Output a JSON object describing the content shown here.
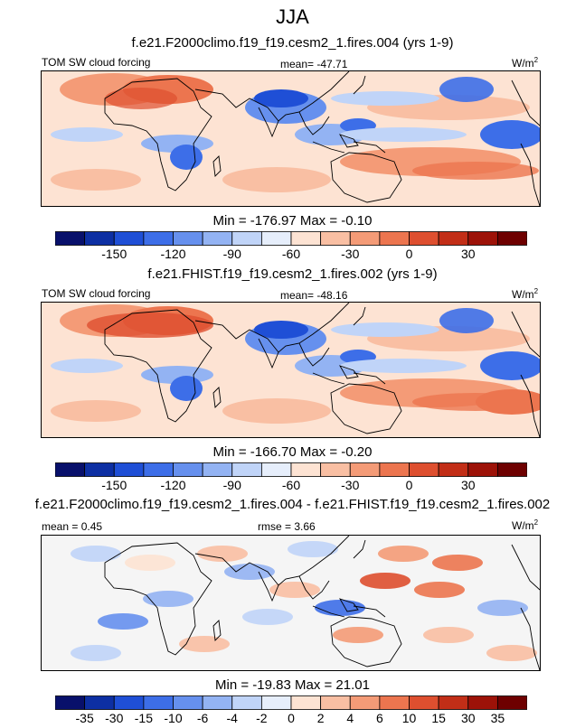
{
  "title": "JJA",
  "panels": [
    {
      "run_title": "f.e21.F2000climo.f19_f19.cesm2_1.fires.004 (yrs 1-9)",
      "left_label": "TOM SW cloud forcing",
      "stat_label": "mean= -47.71",
      "units_base": "W/m",
      "units_exp": "2",
      "minmax": "Min = -176.97 Max =  -0.10",
      "kind": "abs"
    },
    {
      "run_title": "f.e21.FHIST.f19_f19.cesm2_1.fires.002 (yrs 1-9)",
      "left_label": "TOM SW cloud forcing",
      "stat_label": "mean= -48.16",
      "units_base": "W/m",
      "units_exp": "2",
      "minmax": "Min = -166.70 Max =  -0.20",
      "kind": "abs"
    },
    {
      "run_title": "f.e21.F2000climo.f19_f19.cesm2_1.fires.004 - f.e21.FHIST.f19_f19.cesm2_1.fires.002",
      "left_label": "mean =   0.45",
      "stat_label": "rmse =   3.66",
      "units_base": "W/m",
      "units_exp": "2",
      "minmax": "Min = -19.83 Max =  21.01",
      "kind": "diff"
    }
  ],
  "chart_data": [
    {
      "type": "heatmap",
      "subtitle": "f.e21.F2000climo.f19_f19.cesm2_1.fires.004 (yrs 1-9)",
      "variable": "TOM SW cloud forcing",
      "units": "W/m2",
      "mean": -47.71,
      "min": -176.97,
      "max": -0.1,
      "colorbar_levels": [
        -165,
        -150,
        -135,
        -120,
        -105,
        -90,
        -75,
        -60,
        -45,
        -30,
        -15,
        0,
        15,
        30,
        45
      ],
      "colorbar_tick_labels": [
        "-150",
        "-120",
        "-90",
        "-60",
        "-30",
        "0",
        "30"
      ]
    },
    {
      "type": "heatmap",
      "subtitle": "f.e21.FHIST.f19_f19.cesm2_1.fires.002 (yrs 1-9)",
      "variable": "TOM SW cloud forcing",
      "units": "W/m2",
      "mean": -48.16,
      "min": -166.7,
      "max": -0.2,
      "colorbar_levels": [
        -165,
        -150,
        -135,
        -120,
        -105,
        -90,
        -75,
        -60,
        -45,
        -30,
        -15,
        0,
        15,
        30,
        45
      ],
      "colorbar_tick_labels": [
        "-150",
        "-120",
        "-90",
        "-60",
        "-30",
        "0",
        "30"
      ]
    },
    {
      "type": "heatmap",
      "subtitle": "f.e21.F2000climo.f19_f19.cesm2_1.fires.004 - f.e21.FHIST.f19_f19.cesm2_1.fires.002",
      "units": "W/m2",
      "mean": 0.45,
      "rmse": 3.66,
      "min": -19.83,
      "max": 21.01,
      "colorbar_levels": [
        -35,
        -30,
        -15,
        -10,
        -6,
        -4,
        -2,
        0,
        2,
        4,
        6,
        10,
        15,
        30,
        35
      ],
      "colorbar_tick_labels": [
        "-35",
        "-30",
        "-15",
        "-10",
        "-6",
        "-4",
        "-2",
        "0",
        "2",
        "4",
        "6",
        "10",
        "15",
        "30",
        "35"
      ]
    }
  ],
  "colors": {
    "colormap": [
      "#08106b",
      "#0d2fa3",
      "#1f4fd6",
      "#3d6ee8",
      "#6690ee",
      "#93b3f3",
      "#c0d4f8",
      "#e6eefb",
      "#fde3d3",
      "#f9bfa3",
      "#f49b77",
      "#ec754f",
      "#de4f2f",
      "#c22e17",
      "#9d1208",
      "#6e0000"
    ]
  }
}
